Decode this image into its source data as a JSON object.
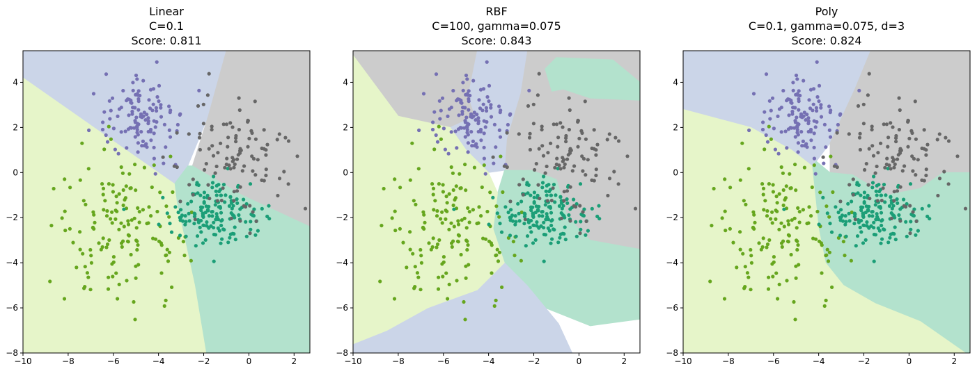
{
  "figure": {
    "point_colors": [
      "#66a61e",
      "#1b9e77",
      "#7570b3",
      "#666666"
    ],
    "region_colors": [
      "#e6f5c9",
      "#b3e2cd",
      "#cbd5e8",
      "#cccccc"
    ]
  },
  "chart_data": [
    {
      "type": "scatter",
      "title_lines": [
        "Linear",
        "C=0.1",
        "Score: 0.811"
      ],
      "xlim": [
        -10,
        2.7
      ],
      "ylim": [
        -8,
        5.4
      ],
      "xticks": [
        -10,
        -8,
        -6,
        -4,
        -2,
        0,
        2
      ],
      "yticks": [
        -8,
        -6,
        -4,
        -2,
        0,
        2,
        4
      ],
      "xtick_labels": [
        "−10",
        "−8",
        "−6",
        "−4",
        "−2",
        "0",
        "2"
      ],
      "ytick_labels": [
        "−8",
        "−6",
        "−4",
        "−2",
        "0",
        "2",
        "4"
      ],
      "decision_regions": [
        {
          "class": 2,
          "polygon": [
            [
              -10,
              5.4
            ],
            [
              -1.0,
              5.4
            ],
            [
              -1.8,
              2.5
            ],
            [
              -2.7,
              0.3
            ],
            [
              -3.3,
              -0.5
            ],
            [
              -10,
              4.2
            ]
          ]
        },
        {
          "class": 3,
          "polygon": [
            [
              -1.0,
              5.4
            ],
            [
              2.7,
              5.4
            ],
            [
              2.7,
              -2.4
            ],
            [
              -0.3,
              -1.0
            ],
            [
              -2.5,
              0.3
            ],
            [
              -1.8,
              2.5
            ]
          ]
        },
        {
          "class": 1,
          "polygon": [
            [
              -3.3,
              -0.5
            ],
            [
              -2.7,
              0.3
            ],
            [
              -2.5,
              0.3
            ],
            [
              -0.3,
              -1.0
            ],
            [
              2.7,
              -2.4
            ],
            [
              2.7,
              -8
            ],
            [
              -1.9,
              -8
            ],
            [
              -2.4,
              -5
            ],
            [
              -3.2,
              -1.3
            ]
          ]
        },
        {
          "class": 0,
          "polygon": [
            [
              -10,
              4.2
            ],
            [
              -3.3,
              -0.5
            ],
            [
              -3.2,
              -1.3
            ],
            [
              -2.4,
              -5
            ],
            [
              -1.9,
              -8
            ],
            [
              -10,
              -8
            ]
          ]
        }
      ]
    },
    {
      "type": "scatter",
      "title_lines": [
        "RBF",
        "C=100, gamma=0.075",
        "Score: 0.843"
      ],
      "xlim": [
        -10,
        2.7
      ],
      "ylim": [
        -8,
        5.4
      ],
      "xticks": [
        -10,
        -8,
        -6,
        -4,
        -2,
        0,
        2
      ],
      "yticks": [
        -8,
        -6,
        -4,
        -2,
        0,
        2,
        4
      ],
      "xtick_labels": [
        "−10",
        "−8",
        "−6",
        "−4",
        "−2",
        "0",
        "2"
      ],
      "ytick_labels": [
        "−8",
        "−6",
        "−4",
        "−2",
        "0",
        "2",
        "4"
      ],
      "decision_regions": [
        {
          "class": 3,
          "polygon": [
            [
              -10,
              5.4
            ],
            [
              2.7,
              5.4
            ],
            [
              2.7,
              -3.4
            ],
            [
              0.5,
              -3.0
            ],
            [
              -0.5,
              -2.0
            ],
            [
              -1.0,
              -0.3
            ],
            [
              -2.1,
              0.0
            ],
            [
              -3.2,
              0.0
            ],
            [
              -4.5,
              1.8
            ],
            [
              -5.7,
              2.0
            ],
            [
              -8.0,
              2.5
            ],
            [
              -10,
              5.2
            ]
          ]
        },
        {
          "class": 2,
          "polygon": [
            [
              -4.5,
              5.4
            ],
            [
              -2.3,
              5.4
            ],
            [
              -2.6,
              3.5
            ],
            [
              -3.2,
              1.5
            ],
            [
              -3.3,
              0.1
            ],
            [
              -4.0,
              0.0
            ],
            [
              -5.0,
              1.0
            ],
            [
              -5.7,
              2.0
            ],
            [
              -4.6,
              2.5
            ],
            [
              -4.9,
              3.4
            ]
          ]
        },
        {
          "class": 1,
          "polygon": [
            [
              -1.5,
              4.6
            ],
            [
              -1.0,
              5.1
            ],
            [
              1.5,
              5.0
            ],
            [
              2.7,
              4.0
            ],
            [
              2.7,
              3.2
            ],
            [
              0.5,
              3.3
            ],
            [
              -0.7,
              3.7
            ],
            [
              -1.2,
              3.6
            ]
          ]
        },
        {
          "class": 1,
          "polygon": [
            [
              -3.3,
              0.1
            ],
            [
              -2.1,
              0.1
            ],
            [
              -1.0,
              -0.3
            ],
            [
              -0.5,
              -2.0
            ],
            [
              0.5,
              -3.0
            ],
            [
              2.7,
              -3.4
            ],
            [
              2.7,
              -6.5
            ],
            [
              0.5,
              -6.8
            ],
            [
              -1.5,
              -6.0
            ],
            [
              -2.3,
              -5.0
            ],
            [
              -3.3,
              -4.0
            ],
            [
              -3.8,
              -2.5
            ],
            [
              -3.6,
              -0.9
            ]
          ]
        },
        {
          "class": 2,
          "polygon": [
            [
              -10,
              -7.6
            ],
            [
              -10,
              -8
            ],
            [
              -0.3,
              -8
            ],
            [
              -0.9,
              -6.7
            ],
            [
              -2.3,
              -5.0
            ],
            [
              -3.3,
              -4.0
            ],
            [
              -4.5,
              -5.2
            ],
            [
              -6.7,
              -6.0
            ],
            [
              -8.5,
              -7.0
            ]
          ]
        },
        {
          "class": 0,
          "polygon": [
            [
              -10,
              5.2
            ],
            [
              -8.0,
              2.5
            ],
            [
              -5.7,
              2.0
            ],
            [
              -5.0,
              1.0
            ],
            [
              -4.0,
              0.0
            ],
            [
              -3.6,
              -0.9
            ],
            [
              -3.8,
              -2.5
            ],
            [
              -3.3,
              -4.0
            ],
            [
              -4.5,
              -5.2
            ],
            [
              -6.7,
              -6.0
            ],
            [
              -8.5,
              -7.0
            ],
            [
              -10,
              -7.6
            ]
          ]
        }
      ]
    },
    {
      "type": "scatter",
      "title_lines": [
        "Poly",
        "C=0.1, gamma=0.075, d=3",
        "Score: 0.824"
      ],
      "xlim": [
        -10,
        2.7
      ],
      "ylim": [
        -8,
        5.4
      ],
      "xticks": [
        -10,
        -8,
        -6,
        -4,
        -2,
        0,
        2
      ],
      "yticks": [
        -8,
        -6,
        -4,
        -2,
        0,
        2,
        4
      ],
      "xtick_labels": [
        "−10",
        "−8",
        "−6",
        "−4",
        "−2",
        "0",
        "2"
      ],
      "ytick_labels": [
        "−8",
        "−6",
        "−4",
        "−2",
        "0",
        "2",
        "4"
      ],
      "decision_regions": [
        {
          "class": 2,
          "polygon": [
            [
              -10,
              5.4
            ],
            [
              -1.7,
              5.4
            ],
            [
              -2.4,
              3.7
            ],
            [
              -3.5,
              1.3
            ],
            [
              -4.1,
              0.5
            ],
            [
              -4.3,
              0.3
            ],
            [
              -5.2,
              1.0
            ],
            [
              -7.0,
              2.0
            ],
            [
              -10,
              2.8
            ]
          ]
        },
        {
          "class": 3,
          "polygon": [
            [
              -1.7,
              5.4
            ],
            [
              2.7,
              5.4
            ],
            [
              2.7,
              0.0
            ],
            [
              1.5,
              0.0
            ],
            [
              0.5,
              -0.7
            ],
            [
              -1.0,
              -1.0
            ],
            [
              -2.5,
              -0.1
            ],
            [
              -3.5,
              0.0
            ],
            [
              -3.5,
              1.3
            ],
            [
              -2.4,
              3.7
            ]
          ]
        },
        {
          "class": 1,
          "polygon": [
            [
              -4.3,
              0.3
            ],
            [
              -4.1,
              0.5
            ],
            [
              -3.5,
              0.0
            ],
            [
              -2.5,
              -0.1
            ],
            [
              -1.0,
              -1.0
            ],
            [
              0.5,
              -0.7
            ],
            [
              1.5,
              0.0
            ],
            [
              2.7,
              0.0
            ],
            [
              2.7,
              -8
            ],
            [
              2.5,
              -8
            ],
            [
              0.5,
              -6.6
            ],
            [
              -1.5,
              -5.8
            ],
            [
              -2.9,
              -5.0
            ],
            [
              -3.7,
              -4.0
            ],
            [
              -4.0,
              -2.5
            ]
          ]
        },
        {
          "class": 0,
          "polygon": [
            [
              -10,
              2.8
            ],
            [
              -7.0,
              2.0
            ],
            [
              -5.2,
              1.0
            ],
            [
              -4.3,
              0.3
            ],
            [
              -4.0,
              -2.5
            ],
            [
              -3.7,
              -4.0
            ],
            [
              -2.9,
              -5.0
            ],
            [
              -1.5,
              -5.8
            ],
            [
              0.5,
              -6.6
            ],
            [
              2.5,
              -8
            ],
            [
              -10,
              -8
            ]
          ]
        }
      ]
    }
  ]
}
